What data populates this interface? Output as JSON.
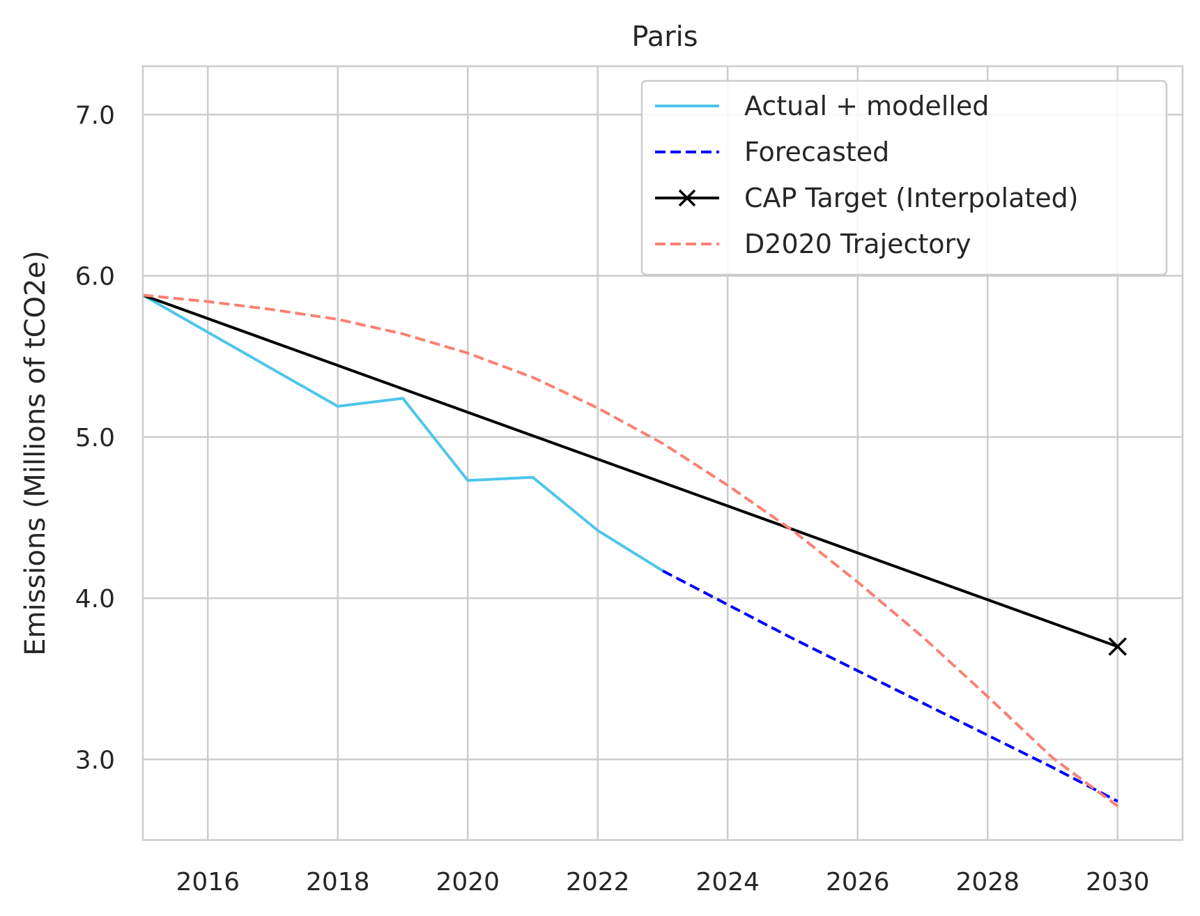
{
  "chart_data": {
    "type": "line",
    "title": "Paris",
    "xlabel": "",
    "ylabel": "Emissions (Millions of tCO2e)",
    "xlim": [
      2015,
      2031
    ],
    "ylim": [
      2.5,
      7.3
    ],
    "x_ticks": [
      2016,
      2018,
      2020,
      2022,
      2024,
      2026,
      2028,
      2030
    ],
    "y_ticks": [
      3.0,
      4.0,
      5.0,
      6.0,
      7.0
    ],
    "grid": true,
    "legend_position": "top-right",
    "series": [
      {
        "name": "Actual + modelled",
        "color": "#4ec6ec",
        "style": "solid",
        "x": [
          2015,
          2016,
          2017,
          2018,
          2019,
          2020,
          2021,
          2022,
          2023
        ],
        "y": [
          5.88,
          5.65,
          5.42,
          5.19,
          5.24,
          4.73,
          4.75,
          4.42,
          4.17
        ]
      },
      {
        "name": "Forecasted",
        "color": "#0000ff",
        "style": "dashed",
        "x": [
          2023,
          2024,
          2025,
          2026,
          2027,
          2028,
          2029,
          2030
        ],
        "y": [
          4.17,
          3.96,
          3.75,
          3.55,
          3.35,
          3.15,
          2.95,
          2.74
        ]
      },
      {
        "name": "CAP Target (Interpolated)",
        "color": "#000000",
        "style": "solid",
        "marker": "x",
        "x": [
          2015,
          2030
        ],
        "y": [
          5.88,
          3.7
        ]
      },
      {
        "name": "D2020 Trajectory",
        "color": "#fa8072",
        "style": "dashed",
        "x": [
          2015,
          2016,
          2017,
          2018,
          2019,
          2020,
          2021,
          2022,
          2023,
          2024,
          2025,
          2026,
          2027,
          2028,
          2029,
          2030
        ],
        "y": [
          5.88,
          5.84,
          5.79,
          5.73,
          5.64,
          5.52,
          5.37,
          5.18,
          4.96,
          4.7,
          4.42,
          4.1,
          3.76,
          3.39,
          3.01,
          2.71
        ]
      }
    ]
  }
}
